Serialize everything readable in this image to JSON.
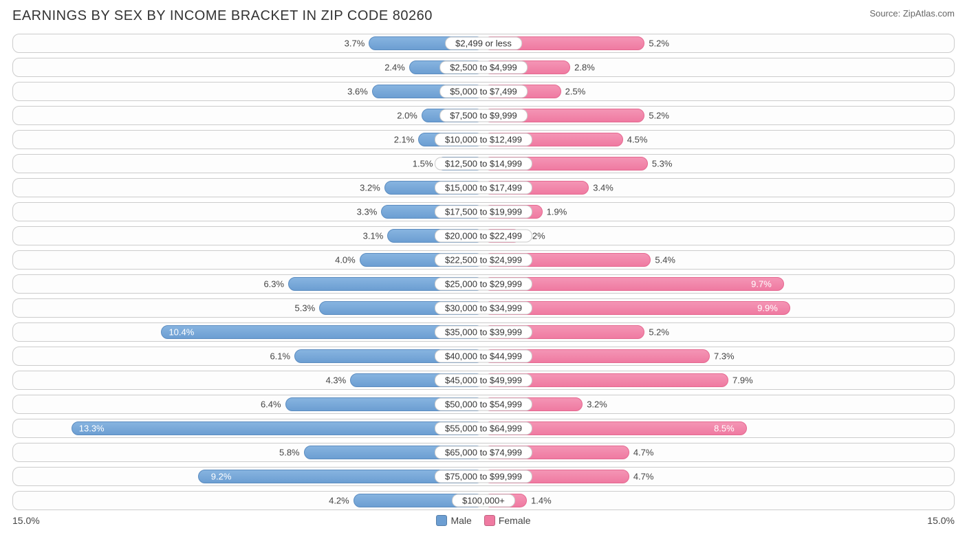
{
  "title": "EARNINGS BY SEX BY INCOME BRACKET IN ZIP CODE 80260",
  "source": "Source: ZipAtlas.com",
  "axis": {
    "max_pct": 15.0,
    "left_label": "15.0%",
    "right_label": "15.0%"
  },
  "colors": {
    "male_bar": "#6c9ed2",
    "female_bar": "#ef7aa1",
    "row_border": "#cccccc",
    "background": "#ffffff",
    "text": "#333333",
    "label_inside": "#ffffff",
    "label_outside": "#444444"
  },
  "legend": {
    "male": "Male",
    "female": "Female"
  },
  "label_inside_threshold": 8.0,
  "rows": [
    {
      "bracket": "$2,499 or less",
      "male": 3.7,
      "female": 5.2
    },
    {
      "bracket": "$2,500 to $4,999",
      "male": 2.4,
      "female": 2.8
    },
    {
      "bracket": "$5,000 to $7,499",
      "male": 3.6,
      "female": 2.5
    },
    {
      "bracket": "$7,500 to $9,999",
      "male": 2.0,
      "female": 5.2
    },
    {
      "bracket": "$10,000 to $12,499",
      "male": 2.1,
      "female": 4.5
    },
    {
      "bracket": "$12,500 to $14,999",
      "male": 1.5,
      "female": 5.3
    },
    {
      "bracket": "$15,000 to $17,499",
      "male": 3.2,
      "female": 3.4
    },
    {
      "bracket": "$17,500 to $19,999",
      "male": 3.3,
      "female": 1.9
    },
    {
      "bracket": "$20,000 to $22,499",
      "male": 3.1,
      "female": 1.2
    },
    {
      "bracket": "$22,500 to $24,999",
      "male": 4.0,
      "female": 5.4
    },
    {
      "bracket": "$25,000 to $29,999",
      "male": 6.3,
      "female": 9.7
    },
    {
      "bracket": "$30,000 to $34,999",
      "male": 5.3,
      "female": 9.9
    },
    {
      "bracket": "$35,000 to $39,999",
      "male": 10.4,
      "female": 5.2
    },
    {
      "bracket": "$40,000 to $44,999",
      "male": 6.1,
      "female": 7.3
    },
    {
      "bracket": "$45,000 to $49,999",
      "male": 4.3,
      "female": 7.9
    },
    {
      "bracket": "$50,000 to $54,999",
      "male": 6.4,
      "female": 3.2
    },
    {
      "bracket": "$55,000 to $64,999",
      "male": 13.3,
      "female": 8.5
    },
    {
      "bracket": "$65,000 to $74,999",
      "male": 5.8,
      "female": 4.7
    },
    {
      "bracket": "$75,000 to $99,999",
      "male": 9.2,
      "female": 4.7
    },
    {
      "bracket": "$100,000+",
      "male": 4.2,
      "female": 1.4
    }
  ]
}
